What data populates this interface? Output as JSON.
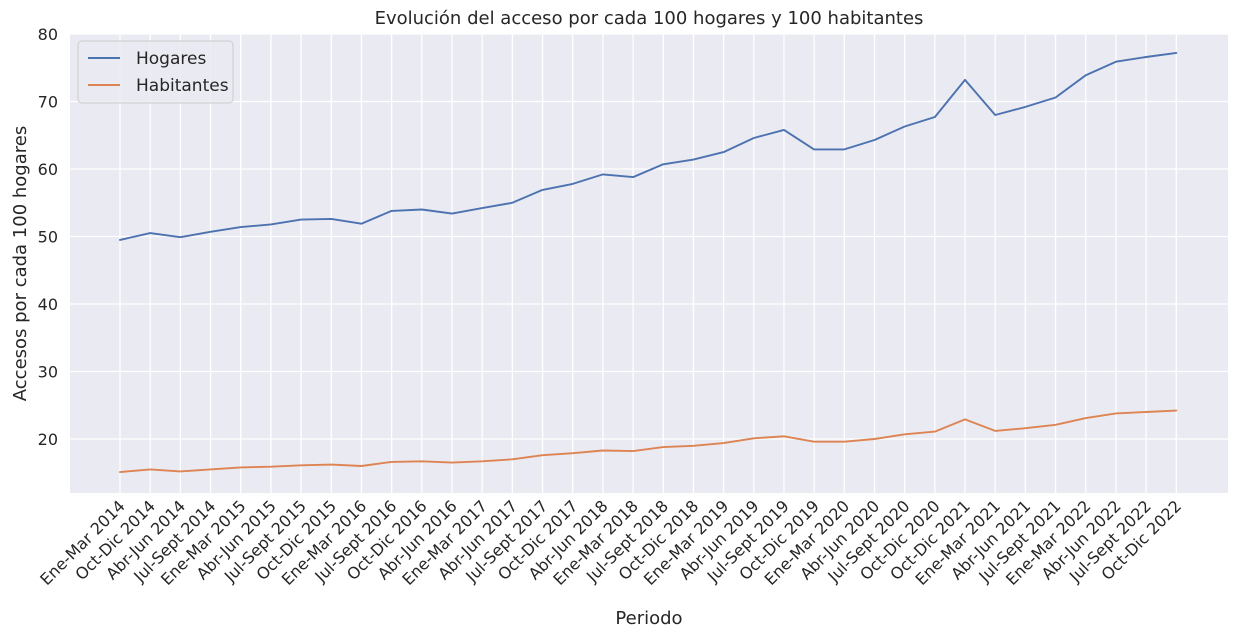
{
  "chart_data": {
    "type": "line",
    "title": "Evolución del acceso por cada 100 hogares y 100 habitantes",
    "xlabel": "Periodo",
    "ylabel": "Accesos por cada 100 hogares",
    "ylim": [
      12,
      80
    ],
    "yticks": [
      20,
      30,
      40,
      50,
      60,
      70,
      80
    ],
    "grid": true,
    "legend_position": "top-left",
    "categories": [
      "Ene-Mar 2014",
      "Oct-Dic 2014",
      "Abr-Jun 2014",
      "Jul-Sept 2014",
      "Ene-Mar 2015",
      "Abr-Jun 2015",
      "Jul-Sept 2015",
      "Oct-Dic 2015",
      "Ene-Mar 2016",
      "Jul-Sept 2016",
      "Oct-Dic 2016",
      "Abr-Jun 2016",
      "Ene-Mar 2017",
      "Abr-Jun 2017",
      "Jul-Sept 2017",
      "Oct-Dic 2017",
      "Abr-Jun 2018",
      "Ene-Mar 2018",
      "Jul-Sept 2018",
      "Oct-Dic 2018",
      "Ene-Mar 2019",
      "Abr-Jun 2019",
      "Jul-Sept 2019",
      "Oct-Dic 2019",
      "Ene-Mar 2020",
      "Abr-Jun 2020",
      "Jul-Sept 2020",
      "Oct-Dic 2020",
      "Oct-Dic 2021",
      "Ene-Mar 2021",
      "Abr-Jun 2021",
      "Jul-Sept 2021",
      "Ene-Mar 2022",
      "Abr-Jun 2022",
      "Jul-Sept 2022",
      "Oct-Dic 2022"
    ],
    "series": [
      {
        "name": "Hogares",
        "color": "#4c72b0",
        "values": [
          49.5,
          50.5,
          49.9,
          50.7,
          51.4,
          51.8,
          52.5,
          52.6,
          51.9,
          53.8,
          54.0,
          53.4,
          54.2,
          55.0,
          56.9,
          57.8,
          59.2,
          58.8,
          60.7,
          61.4,
          62.5,
          64.6,
          65.8,
          62.9,
          62.9,
          64.3,
          66.3,
          67.7,
          73.2,
          68.0,
          69.2,
          70.6,
          73.9,
          75.9,
          76.6,
          77.2
        ]
      },
      {
        "name": "Habitantes",
        "color": "#dd8452",
        "values": [
          15.1,
          15.5,
          15.2,
          15.5,
          15.8,
          15.9,
          16.1,
          16.2,
          16.0,
          16.6,
          16.7,
          16.5,
          16.7,
          17.0,
          17.6,
          17.9,
          18.3,
          18.2,
          18.8,
          19.0,
          19.4,
          20.1,
          20.4,
          19.6,
          19.6,
          20.0,
          20.7,
          21.1,
          22.9,
          21.2,
          21.6,
          22.1,
          23.1,
          23.8,
          24.0,
          24.2
        ]
      }
    ]
  }
}
